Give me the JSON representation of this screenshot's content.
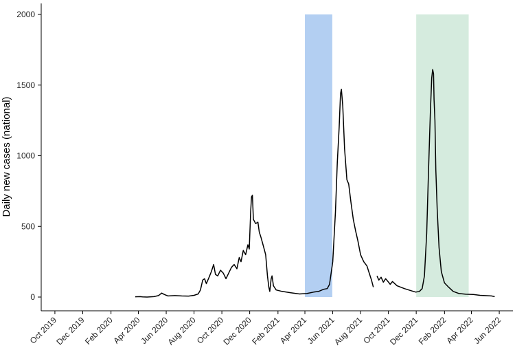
{
  "chart_data": {
    "type": "line",
    "title": "",
    "xlabel": "",
    "ylabel": "Daily new cases (national)",
    "ylim": [
      0,
      2000
    ],
    "xlim": [
      "2019-09-01",
      "2022-07-01"
    ],
    "grid": false,
    "line_color": "#000000",
    "y_ticks": [
      0,
      500,
      1000,
      1500,
      2000
    ],
    "x_ticks": [
      {
        "date": "2019-10-01",
        "label": "Oct 2019"
      },
      {
        "date": "2019-12-01",
        "label": "Dec 2019"
      },
      {
        "date": "2020-02-01",
        "label": "Feb 2020"
      },
      {
        "date": "2020-04-01",
        "label": "Apr 2020"
      },
      {
        "date": "2020-06-01",
        "label": "Jun 2020"
      },
      {
        "date": "2020-08-01",
        "label": "Aug 2020"
      },
      {
        "date": "2020-10-01",
        "label": "Oct 2020"
      },
      {
        "date": "2020-12-01",
        "label": "Dec 2020"
      },
      {
        "date": "2021-02-01",
        "label": "Feb 2021"
      },
      {
        "date": "2021-04-01",
        "label": "Apr 2021"
      },
      {
        "date": "2021-06-01",
        "label": "Jun 2021"
      },
      {
        "date": "2021-08-01",
        "label": "Aug 2021"
      },
      {
        "date": "2021-10-01",
        "label": "Oct 2021"
      },
      {
        "date": "2021-12-01",
        "label": "Dec 2021"
      },
      {
        "date": "2022-02-01",
        "label": "Feb 2022"
      },
      {
        "date": "2022-04-01",
        "label": "Apr 2022"
      },
      {
        "date": "2022-06-01",
        "label": "Jun 2022"
      }
    ],
    "shaded_periods": [
      {
        "start": "2021-04-01",
        "end": "2021-05-31",
        "color": "#b3cff2"
      },
      {
        "start": "2021-12-01",
        "end": "2022-03-26",
        "color": "#d5ebde"
      }
    ],
    "series": [
      {
        "segments": [
          [
            [
              "2020-03-25",
              2
            ],
            [
              "2020-04-05",
              3
            ],
            [
              "2020-04-10",
              1
            ],
            [
              "2020-04-20",
              0
            ],
            [
              "2020-05-05",
              3
            ],
            [
              "2020-05-15",
              10
            ],
            [
              "2020-05-22",
              28
            ],
            [
              "2020-05-28",
              18
            ],
            [
              "2020-06-05",
              8
            ],
            [
              "2020-06-20",
              10
            ],
            [
              "2020-07-05",
              8
            ],
            [
              "2020-07-20",
              7
            ],
            [
              "2020-08-01",
              12
            ],
            [
              "2020-08-10",
              22
            ],
            [
              "2020-08-15",
              50
            ],
            [
              "2020-08-20",
              120
            ],
            [
              "2020-08-24",
              130
            ],
            [
              "2020-08-28",
              95
            ],
            [
              "2020-09-03",
              140
            ],
            [
              "2020-09-08",
              180
            ],
            [
              "2020-09-13",
              230
            ],
            [
              "2020-09-17",
              160
            ],
            [
              "2020-09-22",
              150
            ],
            [
              "2020-09-28",
              190
            ],
            [
              "2020-10-04",
              170
            ],
            [
              "2020-10-10",
              130
            ],
            [
              "2020-10-16",
              170
            ],
            [
              "2020-10-22",
              210
            ],
            [
              "2020-10-28",
              230
            ],
            [
              "2020-11-03",
              200
            ],
            [
              "2020-11-08",
              280
            ],
            [
              "2020-11-12",
              250
            ],
            [
              "2020-11-17",
              330
            ],
            [
              "2020-11-22",
              300
            ],
            [
              "2020-11-27",
              370
            ],
            [
              "2020-11-30",
              340
            ],
            [
              "2020-12-03",
              600
            ],
            [
              "2020-12-05",
              710
            ],
            [
              "2020-12-07",
              720
            ],
            [
              "2020-12-09",
              550
            ],
            [
              "2020-12-14",
              520
            ],
            [
              "2020-12-19",
              530
            ],
            [
              "2020-12-22",
              460
            ],
            [
              "2020-12-26",
              420
            ],
            [
              "2020-12-31",
              360
            ],
            [
              "2021-01-05",
              300
            ],
            [
              "2021-01-09",
              150
            ],
            [
              "2021-01-12",
              70
            ],
            [
              "2021-01-14",
              40
            ],
            [
              "2021-01-17",
              130
            ],
            [
              "2021-01-19",
              150
            ],
            [
              "2021-01-22",
              80
            ],
            [
              "2021-01-28",
              50
            ],
            [
              "2021-02-10",
              40
            ],
            [
              "2021-03-01",
              30
            ],
            [
              "2021-03-20",
              22
            ],
            [
              "2021-04-05",
              25
            ],
            [
              "2021-04-20",
              35
            ],
            [
              "2021-05-01",
              40
            ],
            [
              "2021-05-12",
              55
            ],
            [
              "2021-05-20",
              60
            ],
            [
              "2021-05-25",
              90
            ],
            [
              "2021-06-01",
              250
            ],
            [
              "2021-06-07",
              600
            ],
            [
              "2021-06-11",
              950
            ],
            [
              "2021-06-15",
              1200
            ],
            [
              "2021-06-18",
              1440
            ],
            [
              "2021-06-20",
              1470
            ],
            [
              "2021-06-23",
              1350
            ],
            [
              "2021-06-27",
              1050
            ],
            [
              "2021-07-02",
              830
            ],
            [
              "2021-07-06",
              800
            ],
            [
              "2021-07-11",
              670
            ],
            [
              "2021-07-16",
              550
            ],
            [
              "2021-07-21",
              470
            ],
            [
              "2021-07-26",
              400
            ],
            [
              "2021-08-01",
              300
            ],
            [
              "2021-08-08",
              250
            ],
            [
              "2021-08-15",
              220
            ],
            [
              "2021-08-20",
              170
            ],
            [
              "2021-08-25",
              120
            ],
            [
              "2021-08-29",
              70
            ]
          ],
          [
            [
              "2021-09-06",
              150
            ],
            [
              "2021-09-10",
              120
            ],
            [
              "2021-09-15",
              140
            ],
            [
              "2021-09-20",
              105
            ],
            [
              "2021-09-25",
              130
            ],
            [
              "2021-09-30",
              110
            ],
            [
              "2021-10-05",
              90
            ],
            [
              "2021-10-10",
              110
            ],
            [
              "2021-10-20",
              80
            ],
            [
              "2021-11-05",
              60
            ],
            [
              "2021-11-20",
              45
            ],
            [
              "2021-11-30",
              35
            ],
            [
              "2021-12-08",
              40
            ],
            [
              "2021-12-14",
              60
            ],
            [
              "2021-12-19",
              150
            ],
            [
              "2021-12-24",
              450
            ],
            [
              "2021-12-28",
              900
            ],
            [
              "2022-01-01",
              1300
            ],
            [
              "2022-01-04",
              1550
            ],
            [
              "2022-01-06",
              1610
            ],
            [
              "2022-01-08",
              1580
            ],
            [
              "2022-01-09",
              1400
            ],
            [
              "2022-01-11",
              1250
            ],
            [
              "2022-01-13",
              900
            ],
            [
              "2022-01-16",
              620
            ],
            [
              "2022-01-20",
              350
            ],
            [
              "2022-01-25",
              180
            ],
            [
              "2022-02-01",
              100
            ],
            [
              "2022-02-10",
              70
            ],
            [
              "2022-02-20",
              40
            ],
            [
              "2022-03-05",
              25
            ],
            [
              "2022-03-20",
              20
            ],
            [
              "2022-04-05",
              18
            ],
            [
              "2022-04-20",
              12
            ],
            [
              "2022-05-01",
              10
            ],
            [
              "2022-05-15",
              8
            ],
            [
              "2022-05-22",
              3
            ]
          ]
        ]
      }
    ]
  }
}
